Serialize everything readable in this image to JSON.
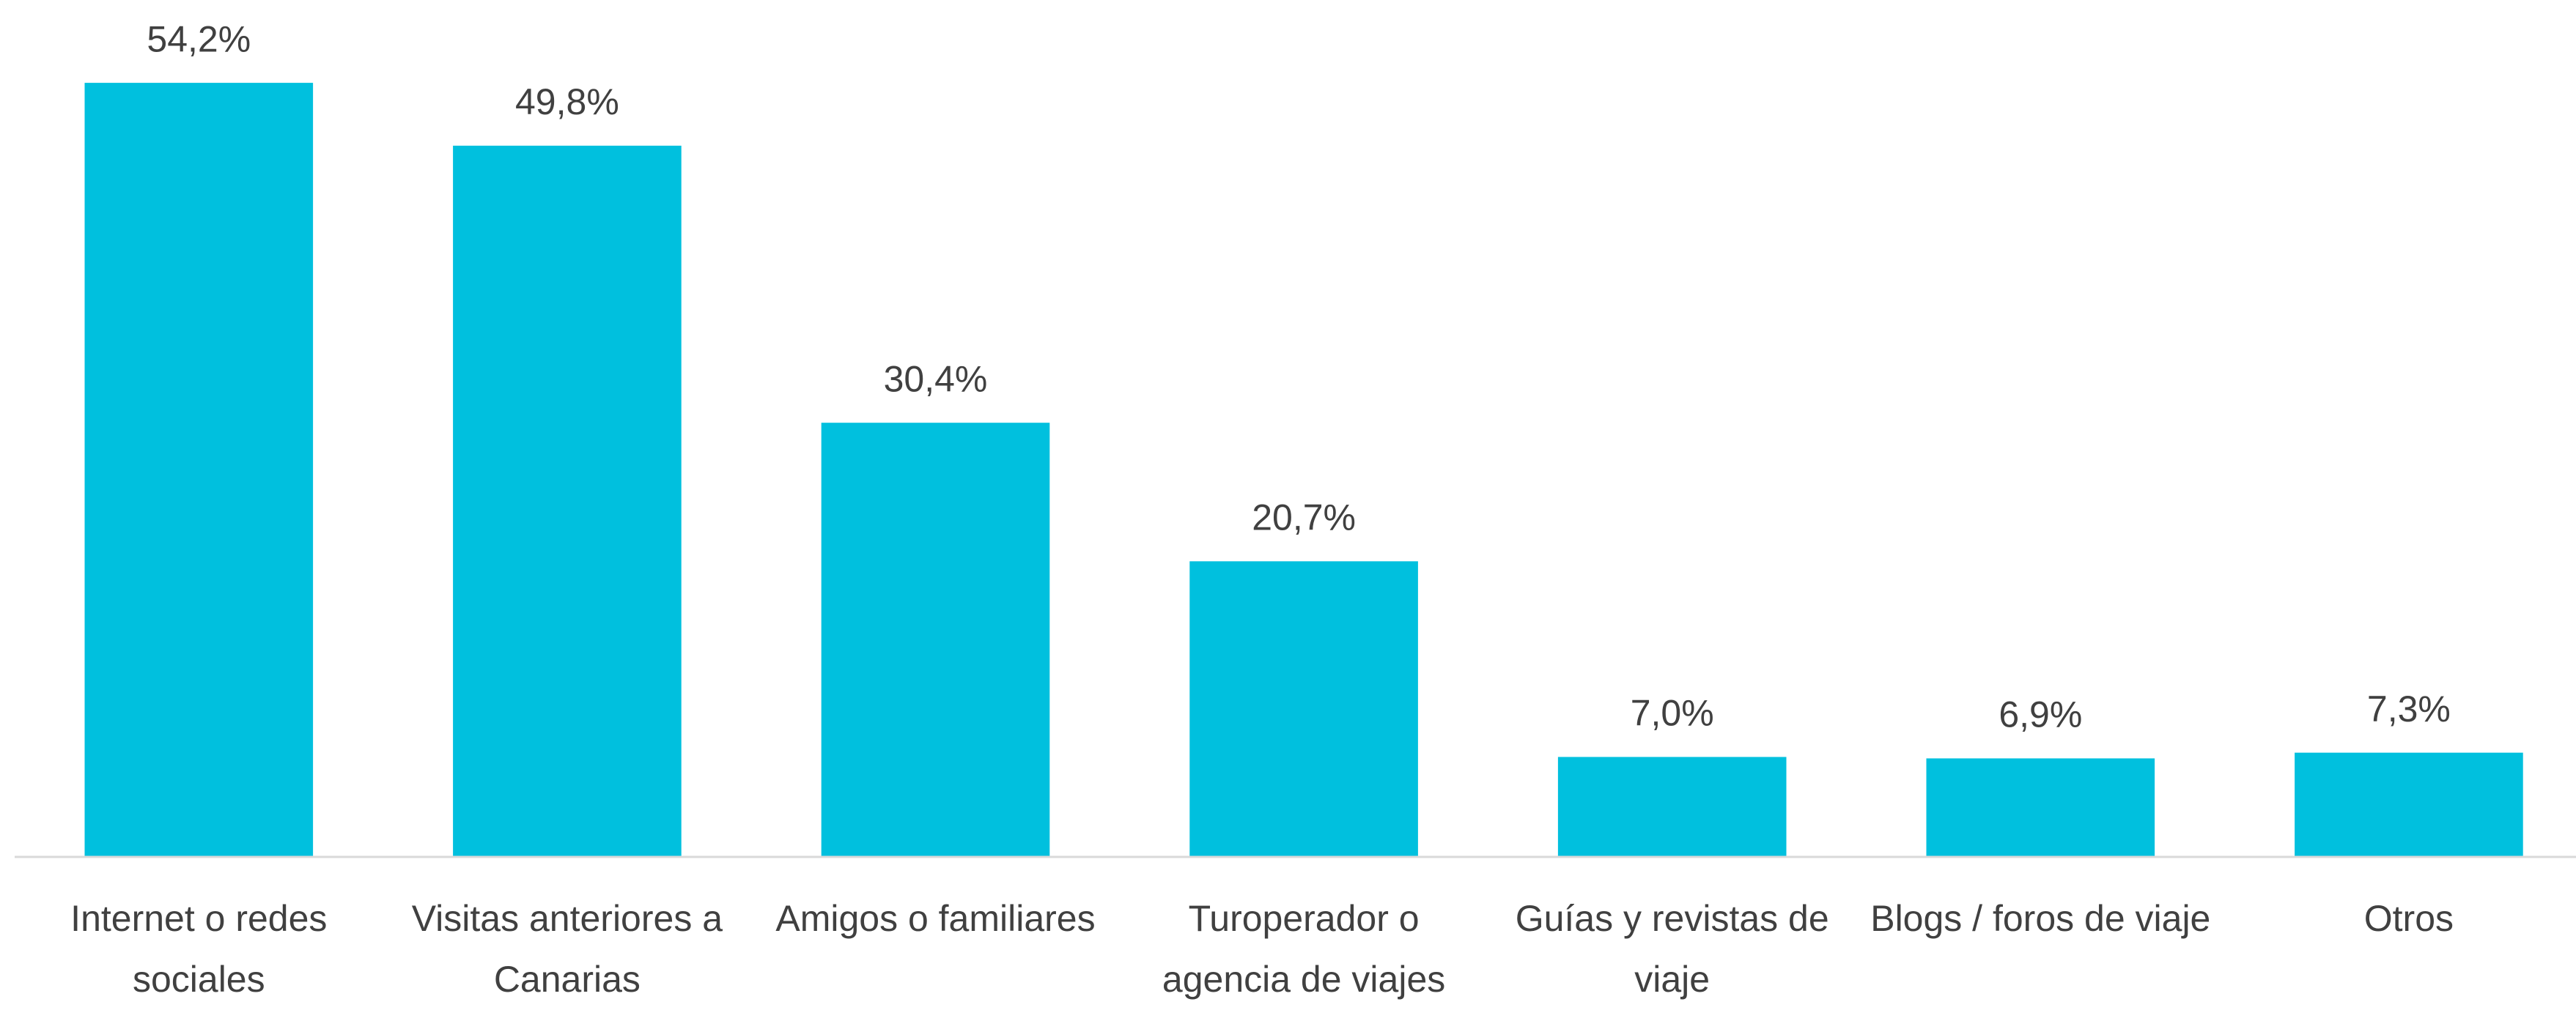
{
  "chart_data": {
    "type": "bar",
    "categories": [
      "Internet o redes sociales",
      "Visitas anteriores a Canarias",
      "Amigos o familiares",
      "Turoperador o agencia de viajes",
      "Guías y revistas de viaje",
      "Blogs / foros de viaje",
      "Otros"
    ],
    "values": [
      54.2,
      49.8,
      30.4,
      20.7,
      7.0,
      6.9,
      7.3
    ],
    "value_labels": [
      "54,2%",
      "49,8%",
      "30,4%",
      "20,7%",
      "7,0%",
      "6,9%",
      "7,3%"
    ],
    "color": "#00c0de",
    "ylim": [
      0,
      60
    ]
  }
}
